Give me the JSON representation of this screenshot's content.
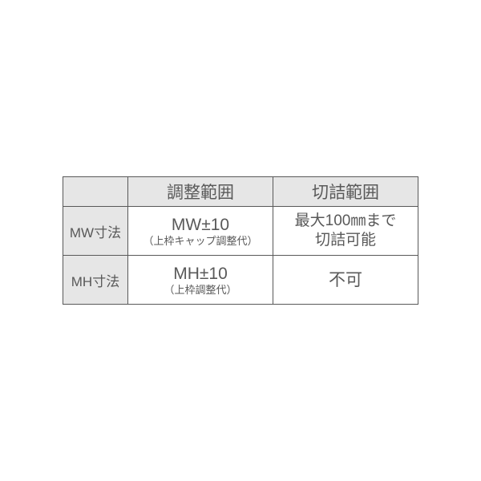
{
  "table": {
    "columns": [
      "調整範囲",
      "切詰範囲"
    ],
    "rows": [
      {
        "label": "MW寸法",
        "range_main": "MW±10",
        "range_sub": "（上枠キャップ調整代）",
        "cut_line1": "最大100㎜まで",
        "cut_line2": "切詰可能"
      },
      {
        "label": "MH寸法",
        "range_main": "MH±10",
        "range_sub": "（上枠調整代）",
        "cut_line1": "不可",
        "cut_line2": ""
      }
    ],
    "border_color": "#595959",
    "header_bg": "#e6e6e6",
    "text_color": "#595959"
  }
}
